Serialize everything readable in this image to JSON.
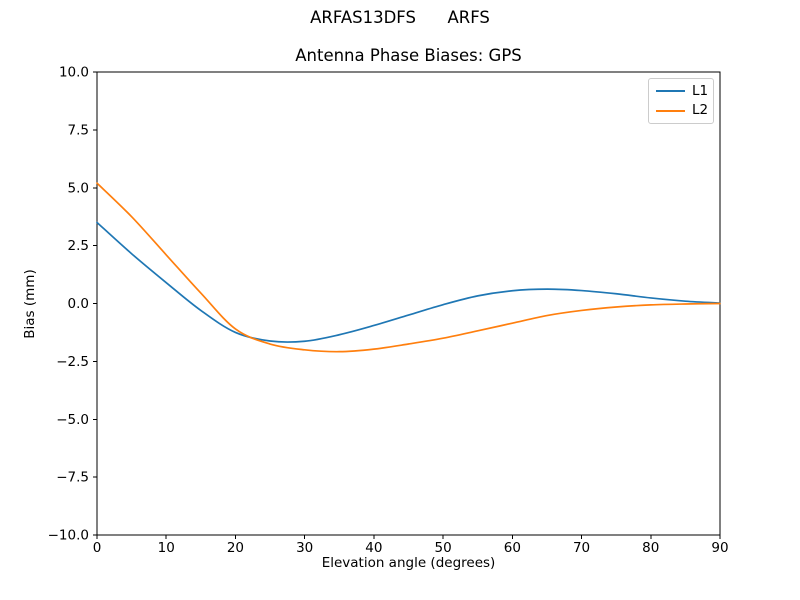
{
  "chart_data": {
    "type": "line",
    "suptitle": "ARFAS13DFS      ARFS",
    "title": "Antenna Phase Biases: GPS",
    "xlabel": "Elevation angle (degrees)",
    "ylabel": "Bias (mm)",
    "xlim": [
      0,
      90
    ],
    "ylim": [
      -10,
      10
    ],
    "xticks": [
      0,
      10,
      20,
      30,
      40,
      50,
      60,
      70,
      80,
      90
    ],
    "yticks": [
      -10,
      -7.5,
      -5,
      -2.5,
      0,
      2.5,
      5,
      7.5,
      10
    ],
    "grid": false,
    "legend_position": "upper right",
    "x": [
      0,
      5,
      10,
      15,
      20,
      25,
      30,
      35,
      40,
      45,
      50,
      55,
      60,
      65,
      70,
      75,
      80,
      85,
      90
    ],
    "series": [
      {
        "name": "L1",
        "color": "#1f77b4",
        "values": [
          3.5,
          2.15,
          0.9,
          -0.3,
          -1.25,
          -1.62,
          -1.63,
          -1.35,
          -0.95,
          -0.5,
          -0.05,
          0.33,
          0.55,
          0.62,
          0.56,
          0.42,
          0.24,
          0.1,
          0.02
        ]
      },
      {
        "name": "L2",
        "color": "#ff7f0e",
        "values": [
          5.2,
          3.75,
          2.1,
          0.45,
          -1.1,
          -1.75,
          -2.0,
          -2.08,
          -1.97,
          -1.75,
          -1.5,
          -1.18,
          -0.85,
          -0.52,
          -0.3,
          -0.15,
          -0.06,
          -0.02,
          0.0
        ]
      }
    ],
    "axis_color": "#000000",
    "background_color": "#ffffff"
  }
}
